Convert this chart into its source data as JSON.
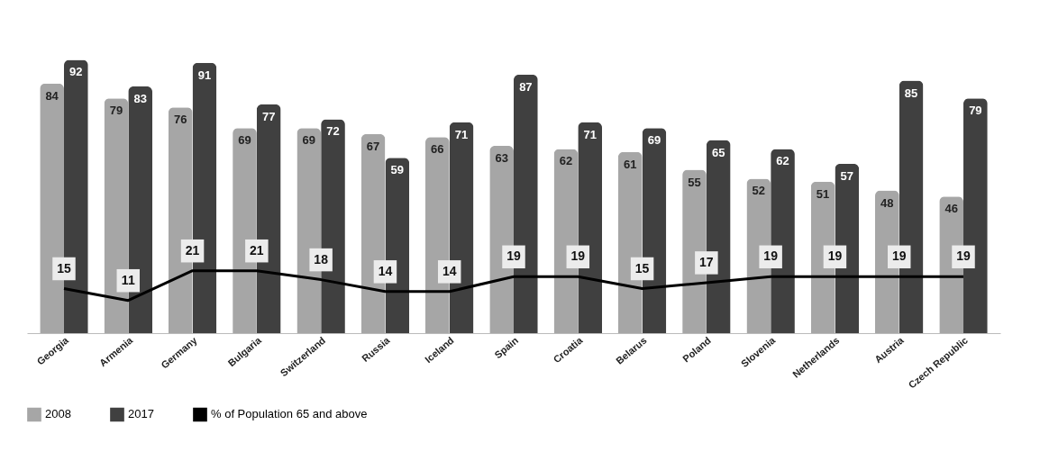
{
  "chart_data": {
    "type": "bar",
    "categories": [
      "Georgia",
      "Armenia",
      "Germany",
      "Bulgaria",
      "Switzerland",
      "Russia",
      "Iceland",
      "Spain",
      "Croatia",
      "Belarus",
      "Poland",
      "Slovenia",
      "Netherlands",
      "Austria",
      "Czech Republic"
    ],
    "series": [
      {
        "name": "2008",
        "color": "#a6a6a6",
        "values": [
          84,
          79,
          76,
          69,
          69,
          67,
          66,
          63,
          62,
          61,
          55,
          52,
          51,
          48,
          46
        ]
      },
      {
        "name": "2017",
        "color": "#404040",
        "values": [
          92,
          83,
          91,
          77,
          72,
          59,
          71,
          87,
          71,
          69,
          65,
          62,
          57,
          85,
          79
        ]
      },
      {
        "name": "% of Population 65 and above",
        "type": "line",
        "color": "#000000",
        "values": [
          15,
          11,
          21,
          21,
          18,
          14,
          14,
          19,
          19,
          15,
          17,
          19,
          19,
          19,
          19
        ]
      }
    ],
    "data_labels": true,
    "legend": "bottom",
    "grid": false,
    "marker": "none"
  }
}
